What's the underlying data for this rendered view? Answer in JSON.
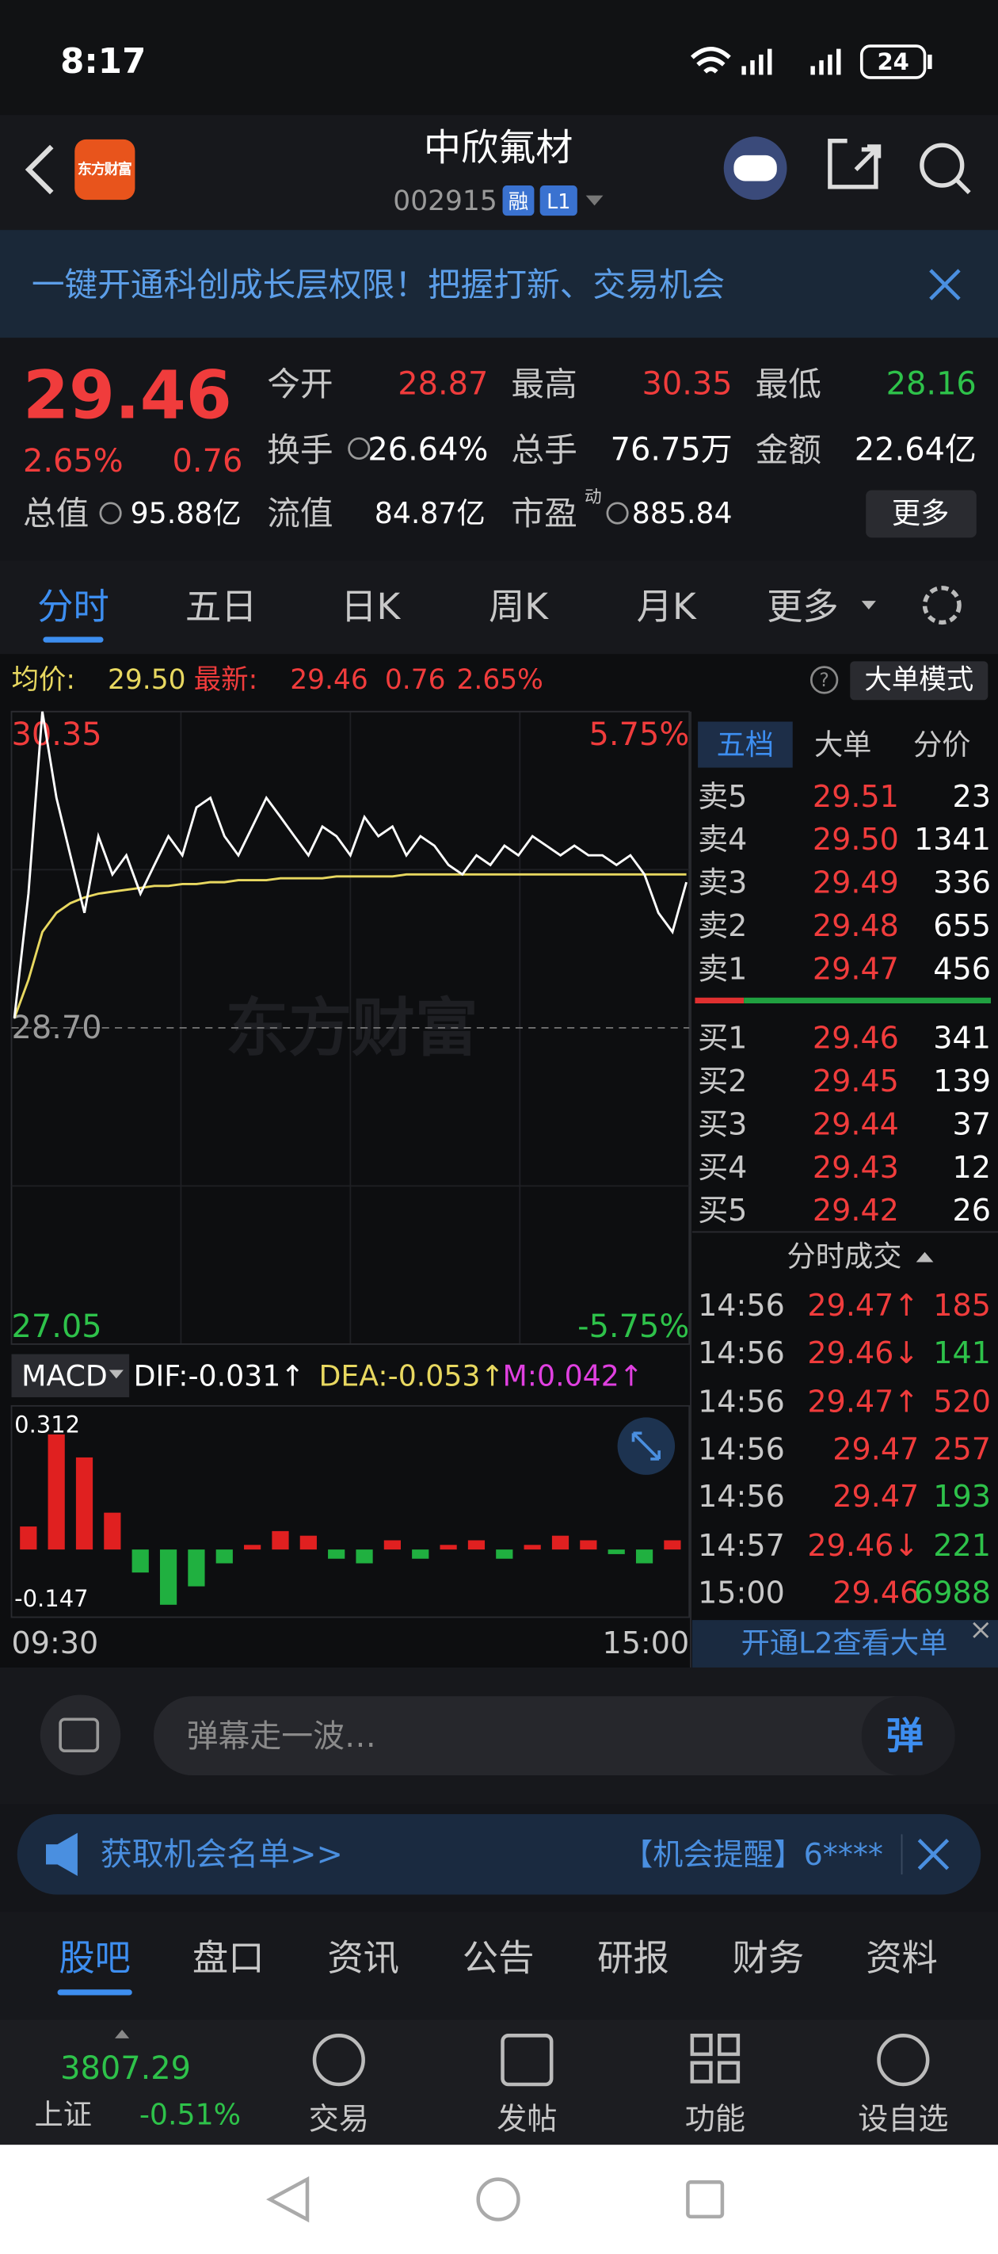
{
  "status_bar": {
    "time": "8:17",
    "battery": "24"
  },
  "header": {
    "logo": "东方财富",
    "title": "中欣氟材",
    "code": "002915",
    "tag_margin": "融",
    "tag_level": "L1"
  },
  "banner": {
    "text": "一键开通科创成长层权限！把握打新、交易机会"
  },
  "quote": {
    "price": "29.46",
    "change_pct": "2.65%",
    "change": "0.76",
    "fields": [
      {
        "label": "今开",
        "value": "28.87",
        "color": "#f03c3c"
      },
      {
        "label": "最高",
        "value": "30.35",
        "color": "#f03c3c"
      },
      {
        "label": "最低",
        "value": "28.16",
        "color": "#2ec24a"
      },
      {
        "label": "换手",
        "value": "26.64%",
        "color": "#ffffff"
      },
      {
        "label": "总手",
        "value": "76.75万",
        "color": "#ffffff"
      },
      {
        "label": "金额",
        "value": "22.64亿",
        "color": "#ffffff"
      },
      {
        "label": "总值",
        "value": "95.88亿",
        "color": "#ffffff"
      },
      {
        "label": "流值",
        "value": "84.87亿",
        "color": "#ffffff"
      },
      {
        "label": "市盈",
        "value": "885.84",
        "color": "#ffffff"
      }
    ],
    "pe_sup": "动",
    "more": "更多"
  },
  "chart_tabs": [
    "分时",
    "五日",
    "日K",
    "周K",
    "月K",
    "更多"
  ],
  "intraday": {
    "avg_label": "均价:",
    "avg": "29.50",
    "last_label": "最新:",
    "last": "29.46",
    "change": "0.76",
    "change_pct": "2.65%",
    "mode": "大单模式",
    "watermark": "东方财富",
    "ylim": [
      27.05,
      30.35
    ],
    "yticks": [
      27.05,
      {
        "value": 28.7,
        "label": "28.70"
      },
      30.35
    ],
    "pct_top": "5.75%",
    "pct_bottom": "-5.75%",
    "price": [
      28.75,
      29.4,
      30.35,
      29.9,
      29.6,
      29.3,
      29.7,
      29.5,
      29.6,
      29.4,
      29.55,
      29.7,
      29.6,
      29.85,
      29.9,
      29.7,
      29.6,
      29.75,
      29.9,
      29.8,
      29.7,
      29.6,
      29.75,
      29.7,
      29.6,
      29.8,
      29.7,
      29.75,
      29.6,
      29.7,
      29.65,
      29.55,
      29.5,
      29.6,
      29.55,
      29.65,
      29.6,
      29.7,
      29.65,
      29.6,
      29.65,
      29.6,
      29.6,
      29.55,
      29.6,
      29.5,
      29.3,
      29.2,
      29.46
    ],
    "average": [
      28.75,
      28.95,
      29.2,
      29.3,
      29.35,
      29.38,
      29.4,
      29.41,
      29.42,
      29.43,
      29.44,
      29.44,
      29.45,
      29.45,
      29.46,
      29.46,
      29.47,
      29.47,
      29.47,
      29.48,
      29.48,
      29.48,
      29.48,
      29.49,
      29.49,
      29.49,
      29.49,
      29.49,
      29.5,
      29.5,
      29.5,
      29.5,
      29.5,
      29.5,
      29.5,
      29.5,
      29.5,
      29.5,
      29.5,
      29.5,
      29.5,
      29.5,
      29.5,
      29.5,
      29.5,
      29.5,
      29.5,
      29.5,
      29.5
    ],
    "start_time": "09:30",
    "end_time": "15:00"
  },
  "macd": {
    "label": "MACD",
    "dif": "DIF:-0.031↑",
    "dea": "DEA:-0.053↑",
    "m": "M:0.042↑",
    "ylim": [
      -0.147,
      0.312
    ],
    "yticks": [
      -0.147,
      0.312
    ],
    "histogram": [
      0.05,
      0.25,
      0.2,
      0.08,
      -0.05,
      -0.12,
      -0.08,
      -0.03,
      0.01,
      0.04,
      0.03,
      -0.02,
      -0.03,
      0.02,
      -0.02,
      0.01,
      0.02,
      -0.02,
      0.01,
      0.03,
      0.02,
      -0.01,
      -0.03,
      0.02
    ]
  },
  "order_book": {
    "tabs": [
      "五档",
      "大单",
      "分价"
    ],
    "asks": [
      {
        "label": "卖5",
        "price": "29.51",
        "volume": "23"
      },
      {
        "label": "卖4",
        "price": "29.50",
        "volume": "1341"
      },
      {
        "label": "卖3",
        "price": "29.49",
        "volume": "336"
      },
      {
        "label": "卖2",
        "price": "29.48",
        "volume": "655"
      },
      {
        "label": "卖1",
        "price": "29.47",
        "volume": "456"
      }
    ],
    "bids": [
      {
        "label": "买1",
        "price": "29.46",
        "volume": "341"
      },
      {
        "label": "买2",
        "price": "29.45",
        "volume": "139"
      },
      {
        "label": "买3",
        "price": "29.44",
        "volume": "37"
      },
      {
        "label": "买4",
        "price": "29.43",
        "volume": "12"
      },
      {
        "label": "买5",
        "price": "29.42",
        "volume": "26"
      }
    ]
  },
  "trades": {
    "title": "分时成交",
    "rows": [
      {
        "time": "14:56",
        "price": "29.47↑",
        "volume": "185",
        "volume_color": "#f03c3c"
      },
      {
        "time": "14:56",
        "price": "29.46↓",
        "volume": "141",
        "volume_color": "#2ec24a"
      },
      {
        "time": "14:56",
        "price": "29.47↑",
        "volume": "520",
        "volume_color": "#f03c3c"
      },
      {
        "time": "14:56",
        "price": "29.47",
        "volume": "257",
        "volume_color": "#f03c3c"
      },
      {
        "time": "14:56",
        "price": "29.47",
        "volume": "193",
        "volume_color": "#2ec24a"
      },
      {
        "time": "14:57",
        "price": "29.46↓",
        "volume": "221",
        "volume_color": "#2ec24a"
      },
      {
        "time": "15:00",
        "price": "29.46",
        "volume": "6988",
        "volume_color": "#2ec24a"
      }
    ],
    "l2": "开通L2查看大单"
  },
  "comment": {
    "placeholder": "弹幕走一波…",
    "button": "弹"
  },
  "ad": {
    "text": "获取机会名单>>",
    "alert": "【机会提醒】6****"
  },
  "bottom_tabs": [
    "股吧",
    "盘口",
    "资讯",
    "公告",
    "研报",
    "财务",
    "资料"
  ],
  "nav": {
    "index_value": "3807.29",
    "index_name": "上证",
    "index_change": "-0.51%",
    "items": [
      "交易",
      "发帖",
      "功能",
      "设自选"
    ]
  }
}
